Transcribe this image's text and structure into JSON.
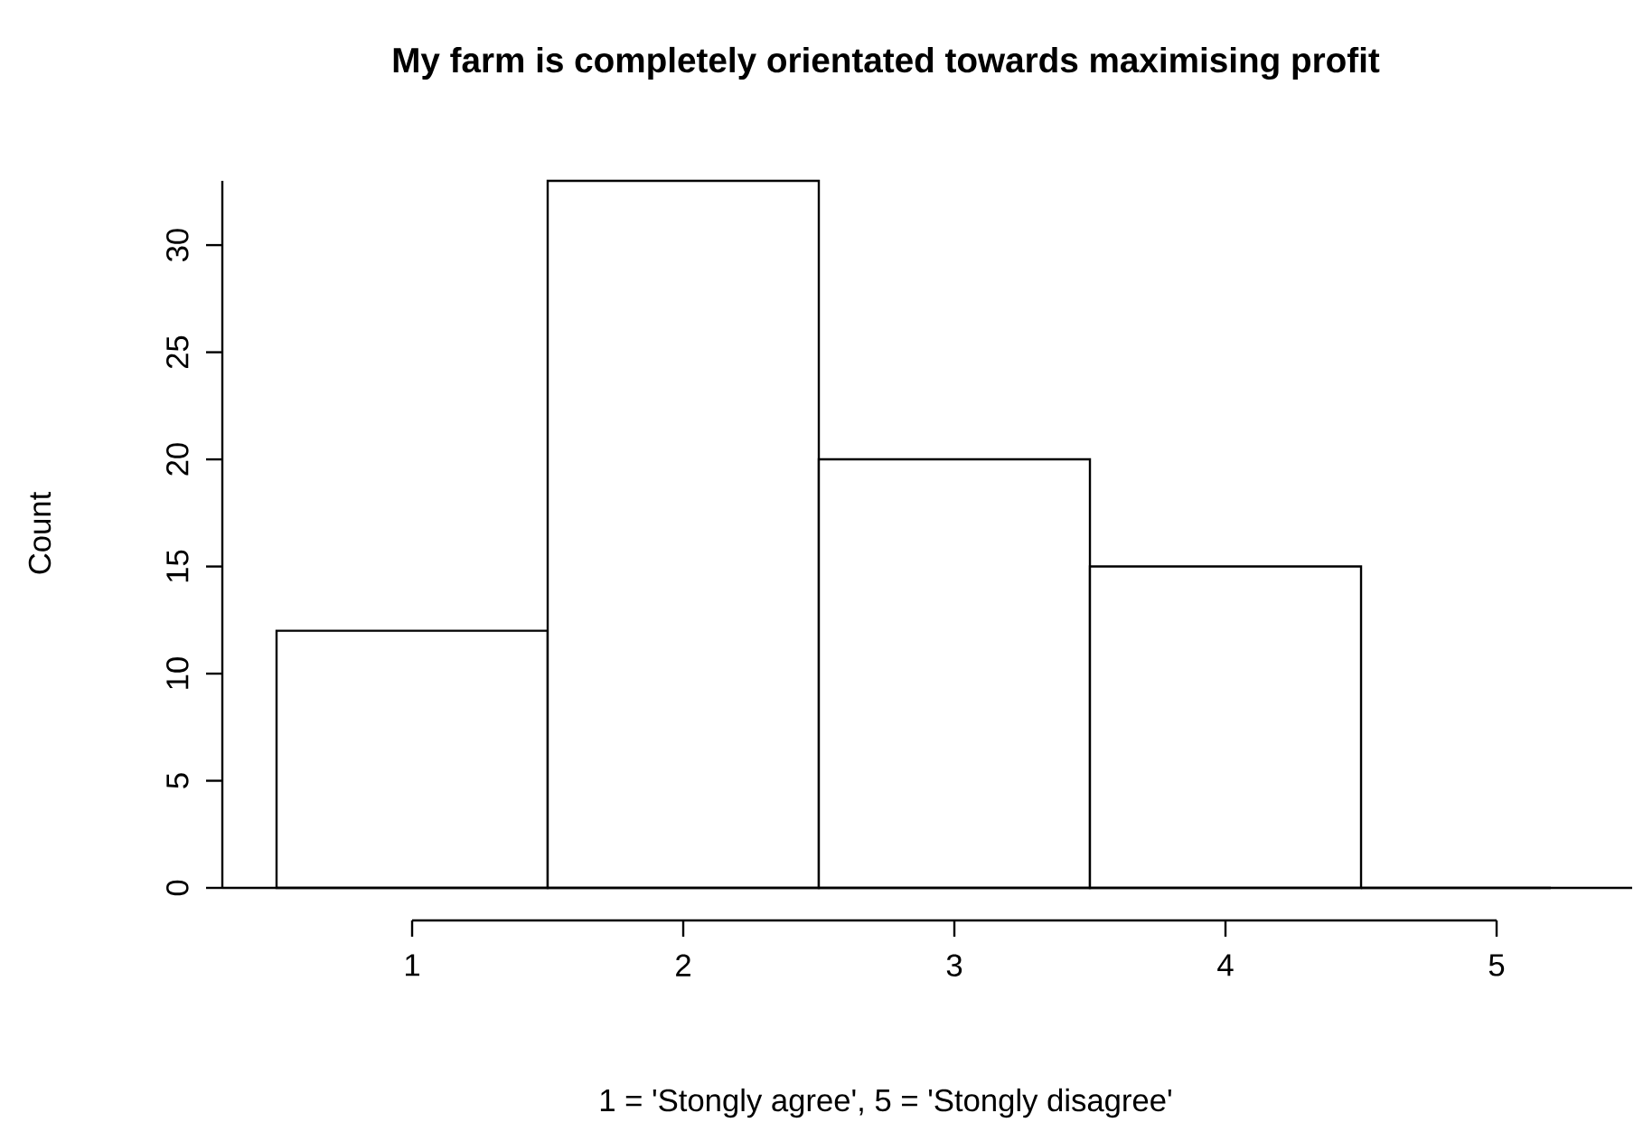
{
  "chart_data": {
    "type": "histogram",
    "title": "My farm is completely orientated towards maximising profit",
    "xlabel": "1 = 'Stongly agree', 5 = 'Stongly disagree'",
    "ylabel": "Count",
    "bins": [
      0.5,
      1.5,
      2.5,
      3.5,
      4.5,
      5.5
    ],
    "values": [
      12,
      33,
      20,
      15,
      0
    ],
    "xlim": [
      0.3,
      5.2
    ],
    "ylim": [
      0,
      33
    ],
    "xticks": [
      1,
      2,
      3,
      4,
      5
    ],
    "yticks": [
      0,
      5,
      10,
      15,
      20,
      25,
      30
    ]
  }
}
